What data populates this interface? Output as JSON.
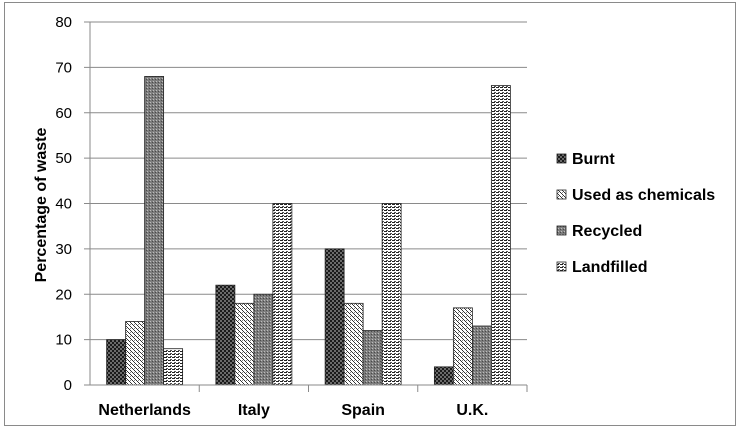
{
  "chart_data": {
    "type": "bar",
    "title": "",
    "xlabel": "",
    "ylabel": "Percentage of waste",
    "ylim": [
      0,
      80
    ],
    "yticks": [
      0,
      10,
      20,
      30,
      40,
      50,
      60,
      70,
      80
    ],
    "grid": "horizontal",
    "legend_position": "right",
    "categories": [
      "Netherlands",
      "Italy",
      "Spain",
      "U.K."
    ],
    "series": [
      {
        "name": "Burnt",
        "values": [
          10,
          22,
          30,
          4
        ],
        "pattern": "dark-checker"
      },
      {
        "name": "Used as chemicals",
        "values": [
          14,
          18,
          18,
          17
        ],
        "pattern": "diagonal-dots"
      },
      {
        "name": "Recycled",
        "values": [
          68,
          20,
          12,
          13
        ],
        "pattern": "gray-stipple"
      },
      {
        "name": "Landfilled",
        "values": [
          8,
          40,
          40,
          66
        ],
        "pattern": "horizontal-dashes"
      }
    ]
  }
}
